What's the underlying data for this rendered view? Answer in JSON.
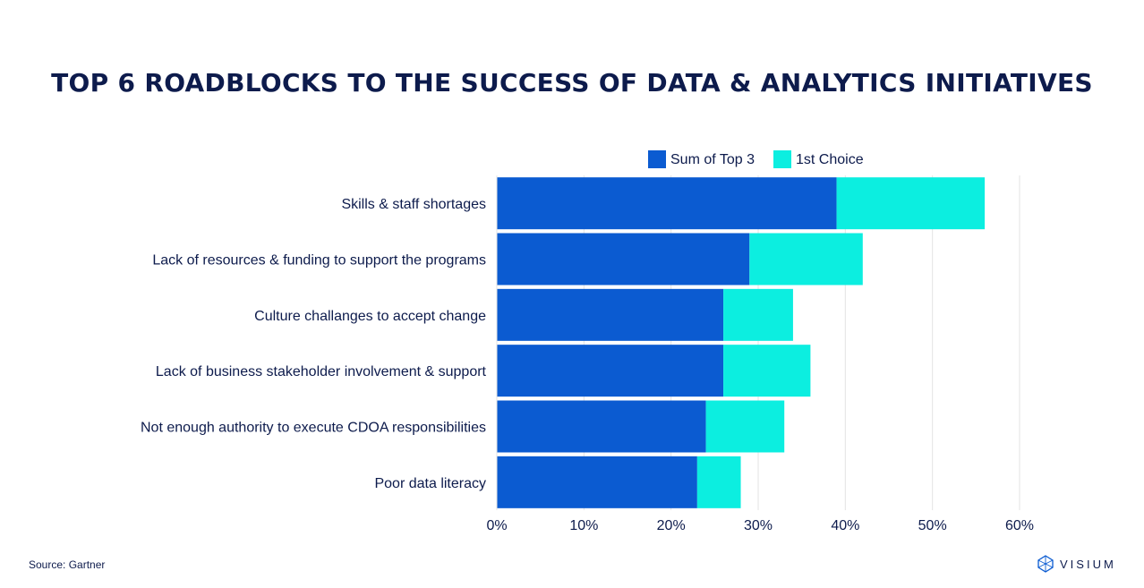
{
  "title": "TOP 6 ROADBLOCKS TO THE SUCCESS OF DATA & ANALYTICS INITIATIVES",
  "source": "Source: Gartner",
  "brand": "VISIUM",
  "colors": {
    "sum_top3": "#0b5bd1",
    "first_choice": "#0ceee0",
    "grid": "#e3e3e3",
    "text": "#0d1b4c"
  },
  "chart_data": {
    "type": "bar",
    "orientation": "horizontal",
    "stacked": true,
    "categories": [
      "Skills & staff shortages",
      "Lack of resources & funding to support the programs",
      "Culture challanges to accept change",
      "Lack of business stakeholder involvement & support",
      "Not enough authority to execute CDOA responsibilities",
      "Poor data literacy"
    ],
    "series": [
      {
        "name": "Sum of Top 3",
        "color": "#0b5bd1",
        "values": [
          39,
          29,
          26,
          26,
          24,
          23
        ]
      },
      {
        "name": "1st Choice",
        "color": "#0ceee0",
        "values": [
          17,
          13,
          8,
          10,
          9,
          5
        ]
      }
    ],
    "xlim": [
      0,
      60
    ],
    "xticks": [
      "0%",
      "10%",
      "20%",
      "30%",
      "40%",
      "50%",
      "60%"
    ],
    "xtick_values": [
      0,
      10,
      20,
      30,
      40,
      50,
      60
    ],
    "grid": true,
    "legend_position": "top"
  }
}
